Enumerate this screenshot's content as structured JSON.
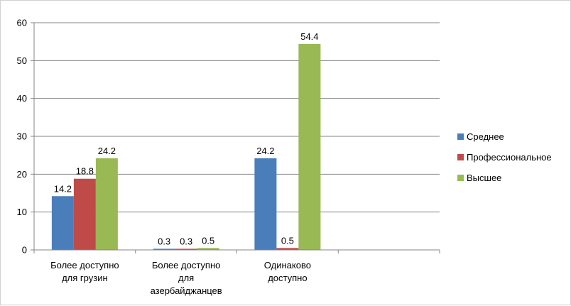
{
  "chart_data": {
    "type": "bar",
    "categories": [
      [
        "Более доступно",
        "для грузин"
      ],
      [
        "Более доступно",
        "для",
        "азербайджанцев"
      ],
      [
        "Одинаково",
        "доступно"
      ],
      [
        ""
      ]
    ],
    "series": [
      {
        "name": "Среднее",
        "color": "#4a7ebb",
        "values": [
          14.2,
          0.3,
          24.2,
          null
        ]
      },
      {
        "name": "Профессиональное",
        "color": "#be4b48",
        "values": [
          18.8,
          0.3,
          0.5,
          null
        ]
      },
      {
        "name": "Высшее",
        "color": "#98b954",
        "values": [
          24.2,
          0.5,
          54.4,
          null
        ]
      }
    ],
    "data_labels": [
      [
        "14.2",
        "0.3",
        "24.2",
        ""
      ],
      [
        "18.8",
        "0.3",
        "0.5",
        ""
      ],
      [
        "24.2",
        "0.5",
        "54.4",
        ""
      ]
    ],
    "yticks": [
      "0",
      "10",
      "20",
      "30",
      "40",
      "50",
      "60"
    ],
    "ylim": [
      0,
      60
    ],
    "grid": true,
    "legend_position": "right"
  }
}
